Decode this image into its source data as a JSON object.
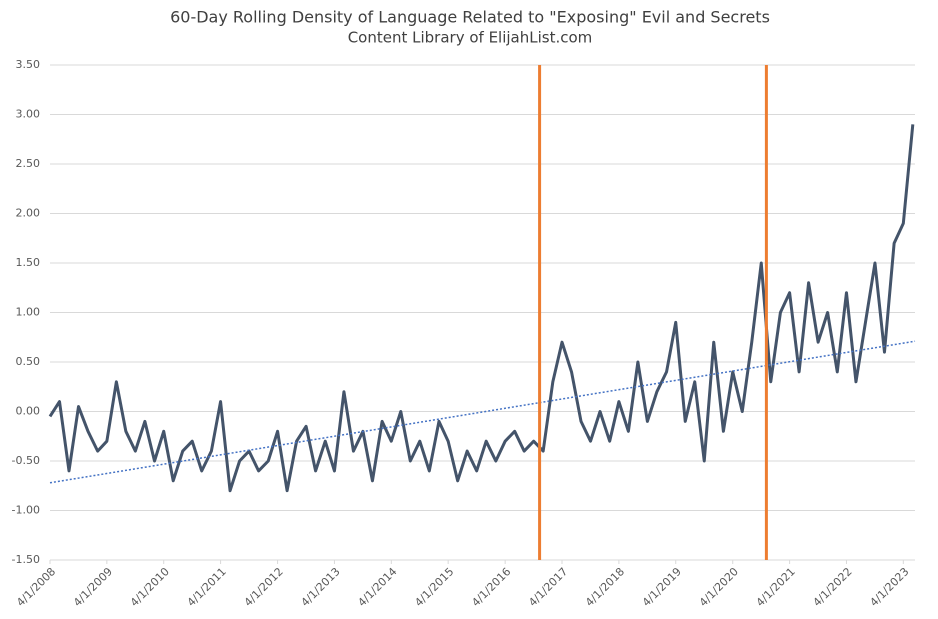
{
  "chart_data": {
    "type": "line",
    "title": "60-Day Rolling Density of Language Related to \"Exposing\" Evil and Secrets",
    "subtitle": "Content Library of ElijahList.com",
    "x": [
      "2008-04-01",
      "2008-06-01",
      "2008-08-01",
      "2008-10-01",
      "2008-12-01",
      "2009-02-01",
      "2009-04-01",
      "2009-06-01",
      "2009-08-01",
      "2009-10-01",
      "2009-12-01",
      "2010-02-01",
      "2010-04-01",
      "2010-06-01",
      "2010-08-01",
      "2010-10-01",
      "2010-12-01",
      "2011-02-01",
      "2011-04-01",
      "2011-06-01",
      "2011-08-01",
      "2011-10-01",
      "2011-12-01",
      "2012-02-01",
      "2012-04-01",
      "2012-06-01",
      "2012-08-01",
      "2012-10-01",
      "2012-12-01",
      "2013-02-01",
      "2013-04-01",
      "2013-06-01",
      "2013-08-01",
      "2013-10-01",
      "2013-12-01",
      "2014-02-01",
      "2014-04-01",
      "2014-06-01",
      "2014-08-01",
      "2014-10-01",
      "2014-12-01",
      "2015-02-01",
      "2015-04-01",
      "2015-06-01",
      "2015-08-01",
      "2015-10-01",
      "2015-12-01",
      "2016-02-01",
      "2016-04-01",
      "2016-06-01",
      "2016-08-01",
      "2016-10-01",
      "2016-12-01",
      "2017-02-01",
      "2017-04-01",
      "2017-06-01",
      "2017-08-01",
      "2017-10-01",
      "2017-12-01",
      "2018-02-01",
      "2018-04-01",
      "2018-06-01",
      "2018-08-01",
      "2018-10-01",
      "2018-12-01",
      "2019-02-01",
      "2019-04-01",
      "2019-06-01",
      "2019-08-01",
      "2019-10-01",
      "2019-12-01",
      "2020-02-01",
      "2020-04-01",
      "2020-06-01",
      "2020-08-01",
      "2020-10-01",
      "2020-12-01",
      "2021-02-01",
      "2021-04-01",
      "2021-06-01",
      "2021-08-01",
      "2021-10-01",
      "2021-12-01",
      "2022-02-01",
      "2022-04-01",
      "2022-06-01",
      "2022-08-01",
      "2022-10-01",
      "2022-12-01",
      "2023-02-01",
      "2023-04-01",
      "2023-06-01"
    ],
    "series": [
      {
        "color": "#44546a",
        "values": [
          -0.05,
          0.1,
          -0.6,
          0.05,
          -0.2,
          -0.4,
          -0.3,
          0.3,
          -0.2,
          -0.4,
          -0.1,
          -0.5,
          -0.2,
          -0.7,
          -0.4,
          -0.3,
          -0.6,
          -0.4,
          0.1,
          -0.8,
          -0.5,
          -0.4,
          -0.6,
          -0.5,
          -0.2,
          -0.8,
          -0.3,
          -0.15,
          -0.6,
          -0.3,
          -0.6,
          0.2,
          -0.4,
          -0.2,
          -0.7,
          -0.1,
          -0.3,
          0.0,
          -0.5,
          -0.3,
          -0.6,
          -0.1,
          -0.3,
          -0.7,
          -0.4,
          -0.6,
          -0.3,
          -0.5,
          -0.3,
          -0.2,
          -0.4,
          -0.3,
          -0.4,
          0.3,
          0.7,
          0.4,
          -0.1,
          -0.3,
          0.0,
          -0.3,
          0.1,
          -0.2,
          0.5,
          -0.1,
          0.2,
          0.4,
          0.9,
          -0.1,
          0.3,
          -0.5,
          0.7,
          -0.2,
          0.4,
          0.0,
          0.7,
          1.5,
          0.3,
          1.0,
          1.2,
          0.4,
          1.3,
          0.7,
          1.0,
          0.4,
          1.2,
          0.3,
          0.9,
          1.5,
          0.6,
          1.7,
          1.9,
          2.9
        ]
      }
    ],
    "trendline": {
      "x": [
        "2008-04-01",
        "2023-06-15"
      ],
      "values": [
        -0.72,
        0.71
      ],
      "color": "#4472c4"
    },
    "vlines": [
      {
        "x": "2016-11-08",
        "color": "#ed7d31"
      },
      {
        "x": "2020-11-03",
        "color": "#ed7d31"
      }
    ],
    "xlim": [
      "2008-04-01",
      "2023-06-15"
    ],
    "xticks": [
      {
        "value": "2008-04-01",
        "label": "4/1/2008"
      },
      {
        "value": "2009-04-01",
        "label": "4/1/2009"
      },
      {
        "value": "2010-04-01",
        "label": "4/1/2010"
      },
      {
        "value": "2011-04-01",
        "label": "4/1/2011"
      },
      {
        "value": "2012-04-01",
        "label": "4/1/2012"
      },
      {
        "value": "2013-04-01",
        "label": "4/1/2013"
      },
      {
        "value": "2014-04-01",
        "label": "4/1/2014"
      },
      {
        "value": "2015-04-01",
        "label": "4/1/2015"
      },
      {
        "value": "2016-04-01",
        "label": "4/1/2016"
      },
      {
        "value": "2017-04-01",
        "label": "4/1/2017"
      },
      {
        "value": "2018-04-01",
        "label": "4/1/2018"
      },
      {
        "value": "2019-04-01",
        "label": "4/1/2019"
      },
      {
        "value": "2020-04-01",
        "label": "4/1/2020"
      },
      {
        "value": "2021-04-01",
        "label": "4/1/2021"
      },
      {
        "value": "2022-04-01",
        "label": "4/1/2022"
      },
      {
        "value": "2023-04-01",
        "label": "4/1/2023"
      }
    ],
    "ylim": [
      -1.5,
      3.5
    ],
    "yticks": [
      {
        "value": -1.5,
        "label": "-1.50"
      },
      {
        "value": -1,
        "label": "-1.00"
      },
      {
        "value": -0.5,
        "label": "-0.50"
      },
      {
        "value": 0,
        "label": "0.00"
      },
      {
        "value": 0.5,
        "label": "0.50"
      },
      {
        "value": 1,
        "label": "1.00"
      },
      {
        "value": 1.5,
        "label": "1.50"
      },
      {
        "value": 2,
        "label": "2.00"
      },
      {
        "value": 2.5,
        "label": "2.50"
      },
      {
        "value": 3,
        "label": "3.00"
      },
      {
        "value": 3.5,
        "label": "3.50"
      }
    ],
    "grid": true
  }
}
